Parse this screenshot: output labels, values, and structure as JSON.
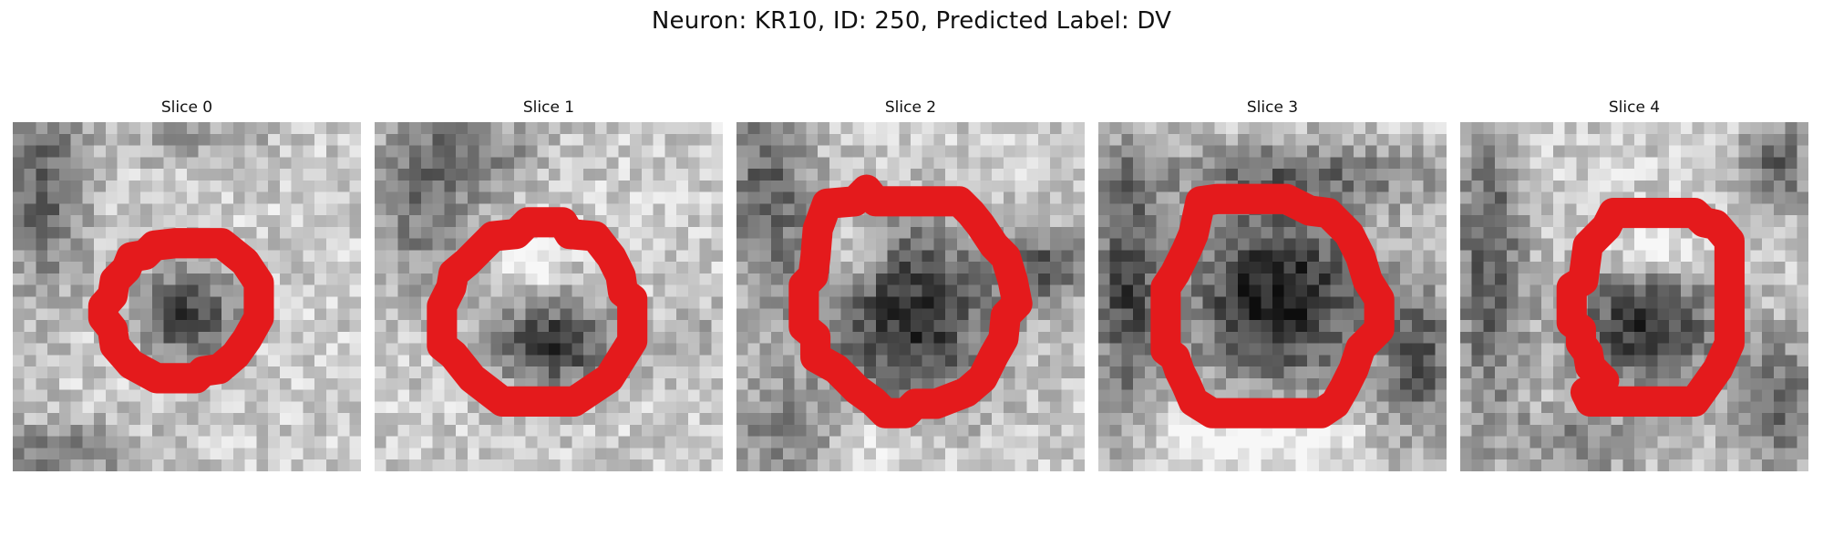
{
  "figure": {
    "title": "Neuron: KR10, ID: 250, Predicted Label: DV",
    "contour_color": "#e41a1c"
  },
  "slices": [
    {
      "title": "Slice 0"
    },
    {
      "title": "Slice 1"
    },
    {
      "title": "Slice 2"
    },
    {
      "title": "Slice 3"
    },
    {
      "title": "Slice 4"
    }
  ]
}
